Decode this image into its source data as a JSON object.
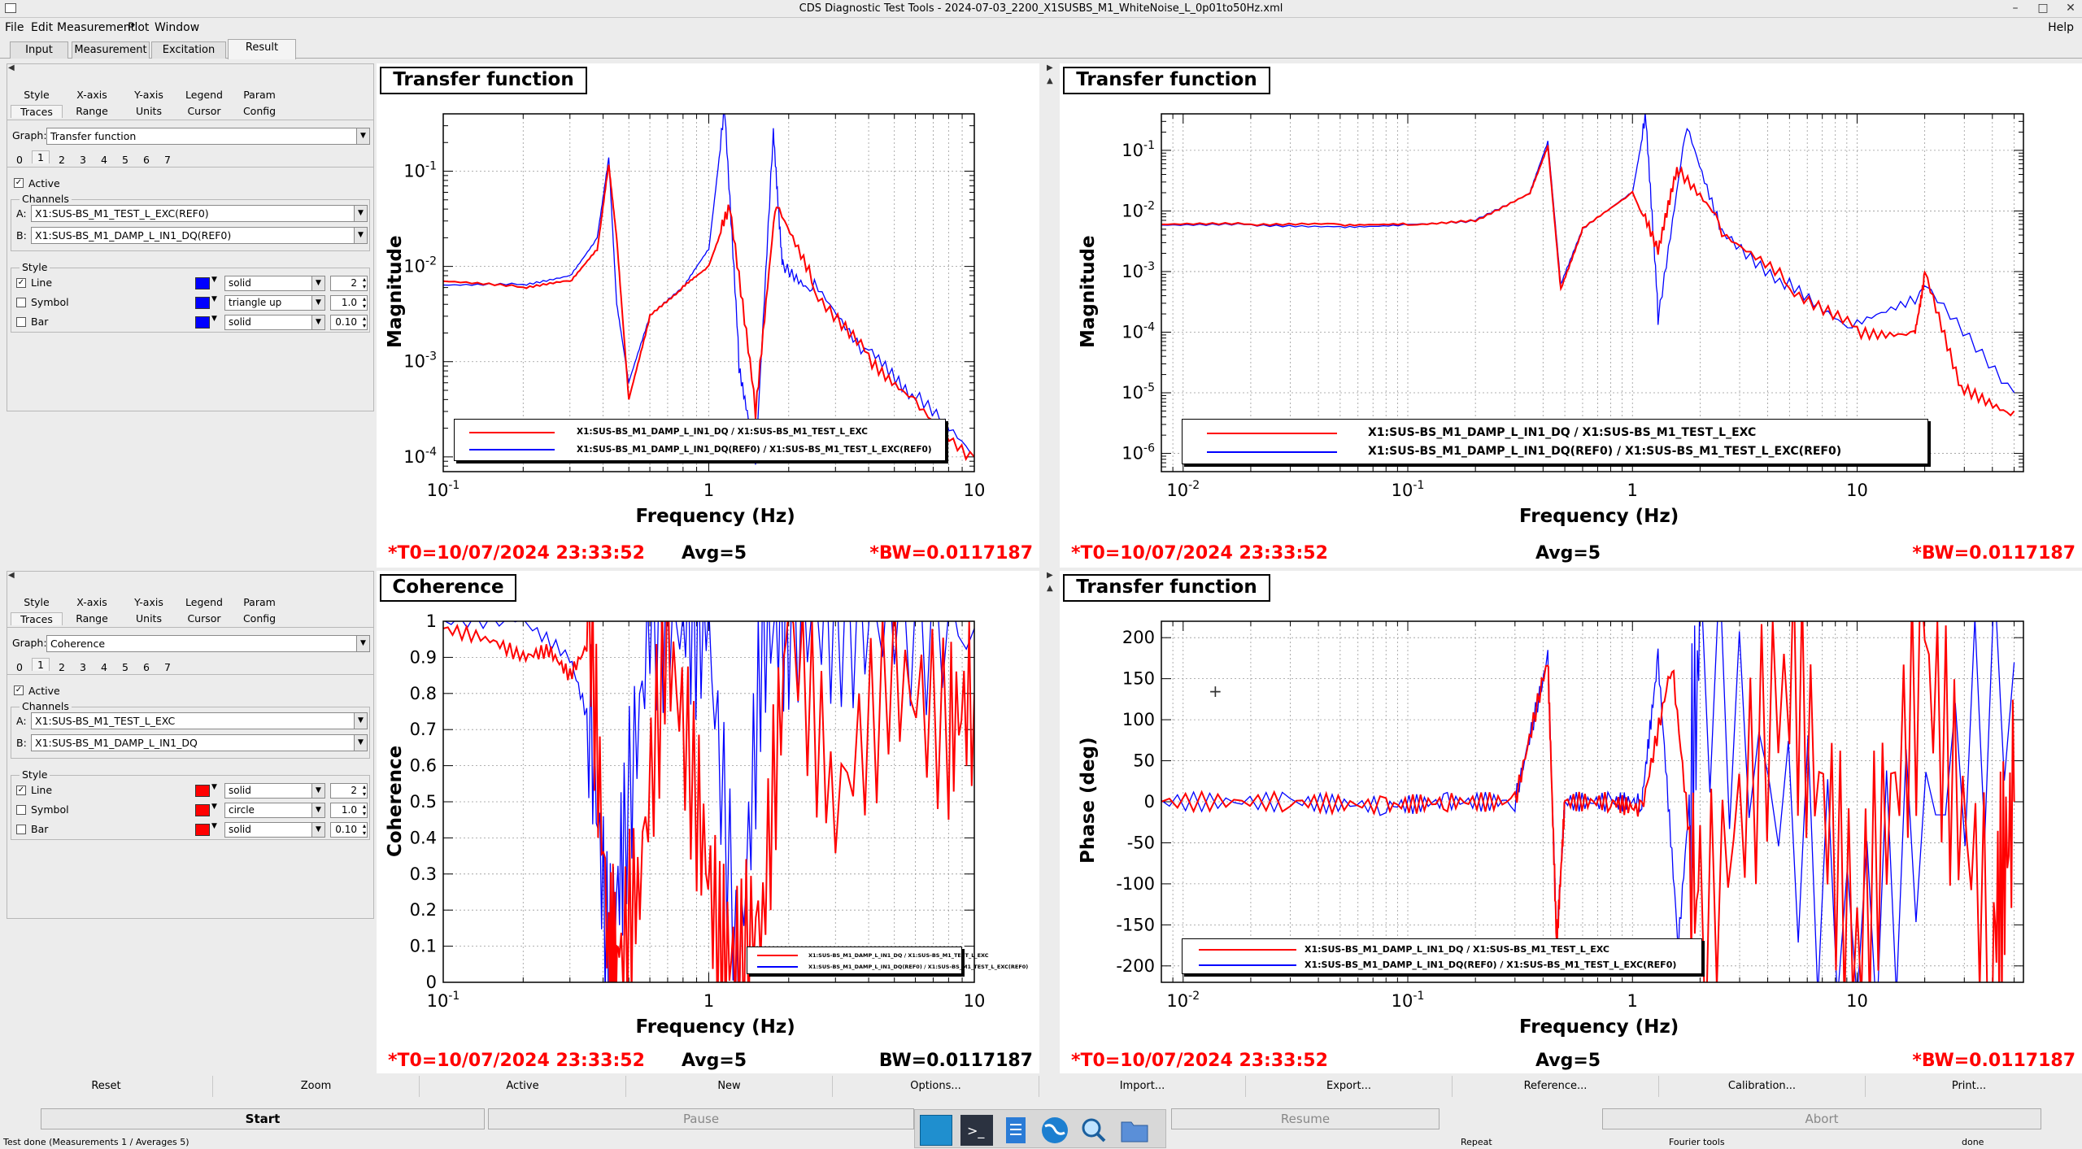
{
  "window": {
    "title": "CDS Diagnostic Test Tools - 2024-07-03_2200_X1SUSBS_M1_WhiteNoise_L_0p01to50Hz.xml",
    "controls": [
      "–",
      "□",
      "✕"
    ]
  },
  "menu": {
    "items": [
      "File",
      "Edit",
      "Measurement",
      "Plot",
      "Window"
    ],
    "help": "Help"
  },
  "tabs": [
    "Input",
    "Measurement",
    "Excitation",
    "Result"
  ],
  "panels": [
    {
      "subtabs_row1": [
        "Style",
        "X-axis",
        "Y-axis",
        "Legend",
        "Param"
      ],
      "subtabs_row2": [
        "Traces",
        "Range",
        "Units",
        "Cursor",
        "Config"
      ],
      "graph_label": "Graph:",
      "graph_value": "Transfer function",
      "trace_numbers": [
        "0",
        "1",
        "2",
        "3",
        "4",
        "5",
        "6",
        "7"
      ],
      "active_label": "Active",
      "channels_label": "Channels",
      "a_label": "A:",
      "a_value": "X1:SUS-BS_M1_TEST_L_EXC(REF0)",
      "b_label": "B:",
      "b_value": "X1:SUS-BS_M1_DAMP_L_IN1_DQ(REF0)",
      "style_label": "Style",
      "rows": [
        {
          "label": "Line",
          "checked": true,
          "color": "#0000ff",
          "style": "solid",
          "value": "2"
        },
        {
          "label": "Symbol",
          "checked": false,
          "color": "#0000ff",
          "style": "triangle up",
          "value": "1.0"
        },
        {
          "label": "Bar",
          "checked": false,
          "color": "#0000ff",
          "style": "solid",
          "value": "0.10"
        }
      ]
    },
    {
      "subtabs_row1": [
        "Style",
        "X-axis",
        "Y-axis",
        "Legend",
        "Param"
      ],
      "subtabs_row2": [
        "Traces",
        "Range",
        "Units",
        "Cursor",
        "Config"
      ],
      "graph_label": "Graph:",
      "graph_value": "Coherence",
      "trace_numbers": [
        "0",
        "1",
        "2",
        "3",
        "4",
        "5",
        "6",
        "7"
      ],
      "active_label": "Active",
      "channels_label": "Channels",
      "a_label": "A:",
      "a_value": "X1:SUS-BS_M1_TEST_L_EXC",
      "b_label": "B:",
      "b_value": "X1:SUS-BS_M1_DAMP_L_IN1_DQ",
      "style_label": "Style",
      "rows": [
        {
          "label": "Line",
          "checked": true,
          "color": "#ff0000",
          "style": "solid",
          "value": "2"
        },
        {
          "label": "Symbol",
          "checked": false,
          "color": "#ff0000",
          "style": "circle",
          "value": "1.0"
        },
        {
          "label": "Bar",
          "checked": false,
          "color": "#ff0000",
          "style": "solid",
          "value": "0.10"
        }
      ]
    }
  ],
  "plots": [
    {
      "title": "Transfer function",
      "ylabel": "Magnitude",
      "xlabel": "Frequency (Hz)",
      "t0": "*T0=10/07/2024 23:33:52",
      "avg": "Avg=5",
      "bw": "*BW=0.0117187",
      "legend": [
        "X1:SUS-BS_M1_DAMP_L_IN1_DQ / X1:SUS-BS_M1_TEST_L_EXC",
        "X1:SUS-BS_M1_DAMP_L_IN1_DQ(REF0) / X1:SUS-BS_M1_TEST_L_EXC(REF0)"
      ]
    },
    {
      "title": "Transfer function",
      "ylabel": "Magnitude",
      "xlabel": "Frequency (Hz)",
      "t0": "*T0=10/07/2024 23:33:52",
      "avg": "Avg=5",
      "bw": "*BW=0.0117187",
      "legend": [
        "X1:SUS-BS_M1_DAMP_L_IN1_DQ / X1:SUS-BS_M1_TEST_L_EXC",
        "X1:SUS-BS_M1_DAMP_L_IN1_DQ(REF0) / X1:SUS-BS_M1_TEST_L_EXC(REF0)"
      ]
    },
    {
      "title": "Coherence",
      "ylabel": "Coherence",
      "xlabel": "Frequency (Hz)",
      "t0": "*T0=10/07/2024 23:33:52",
      "avg": "Avg=5",
      "bw": "BW=0.0117187",
      "legend": [
        "X1:SUS-BS_M1_DAMP_L_IN1_DQ / X1:SUS-BS_M1_TEST_L_EXC",
        "X1:SUS-BS_M1_DAMP_L_IN1_DQ(REF0) / X1:SUS-BS_M1_TEST_L_EXC(REF0)"
      ]
    },
    {
      "title": "Transfer function",
      "ylabel": "Phase (deg)",
      "xlabel": "Frequency (Hz)",
      "t0": "*T0=10/07/2024 23:33:52",
      "avg": "Avg=5",
      "bw": "*BW=0.0117187",
      "legend": [
        "X1:SUS-BS_M1_DAMP_L_IN1_DQ / X1:SUS-BS_M1_TEST_L_EXC",
        "X1:SUS-BS_M1_DAMP_L_IN1_DQ(REF0) / X1:SUS-BS_M1_TEST_L_EXC(REF0)"
      ]
    }
  ],
  "chart_data": [
    {
      "type": "line",
      "title": "Transfer function",
      "xlabel": "Frequency (Hz)",
      "ylabel": "Magnitude",
      "xscale": "log",
      "yscale": "log",
      "xlim": [
        0.1,
        10
      ],
      "ylim": [
        7e-05,
        0.4
      ],
      "xticks": [
        "10^-1",
        "1",
        "10"
      ],
      "yticks": [
        "10^-4",
        "10^-3",
        "10^-2",
        "10^-1"
      ],
      "grid": true,
      "legend_position": "bottom",
      "series": [
        {
          "name": "X1:SUS-BS_M1_DAMP_L_IN1_DQ / X1:SUS-BS_M1_TEST_L_EXC",
          "color": "#ff0000",
          "x": [
            0.1,
            0.2,
            0.3,
            0.38,
            0.42,
            0.45,
            0.5,
            0.6,
            0.8,
            1.0,
            1.2,
            1.5,
            1.8,
            2.5,
            4,
            6,
            10
          ],
          "y": [
            0.007,
            0.006,
            0.007,
            0.015,
            0.12,
            0.02,
            0.0004,
            0.003,
            0.006,
            0.01,
            0.04,
            0.0003,
            0.05,
            0.006,
            0.0012,
            0.0004,
            0.0001
          ]
        },
        {
          "name": "X1:SUS-BS_M1_DAMP_L_IN1_DQ(REF0) / X1:SUS-BS_M1_TEST_L_EXC(REF0)",
          "color": "#0000ff",
          "x": [
            0.1,
            0.2,
            0.3,
            0.38,
            0.42,
            0.45,
            0.5,
            0.6,
            0.8,
            1.0,
            1.15,
            1.3,
            1.5,
            1.75,
            1.9,
            2.5,
            4,
            6,
            10
          ],
          "y": [
            0.0065,
            0.0065,
            0.008,
            0.02,
            0.14,
            0.004,
            0.0006,
            0.003,
            0.006,
            0.015,
            0.45,
            0.001,
            0.0001,
            0.28,
            0.01,
            0.006,
            0.0012,
            0.0004,
            0.0001
          ]
        }
      ]
    },
    {
      "type": "line",
      "title": "Transfer function",
      "xlabel": "Frequency (Hz)",
      "ylabel": "Magnitude",
      "xscale": "log",
      "yscale": "log",
      "xlim": [
        0.008,
        55
      ],
      "ylim": [
        5e-07,
        0.4
      ],
      "xticks": [
        "10^-2",
        "10^-1",
        "1",
        "10"
      ],
      "yticks": [
        "10^-6",
        "10^-5",
        "10^-4",
        "10^-3",
        "10^-2",
        "10^-1"
      ],
      "grid": true,
      "legend_position": "bottom",
      "series": [
        {
          "name": "X1:SUS-BS_M1_DAMP_L_IN1_DQ / X1:SUS-BS_M1_TEST_L_EXC",
          "color": "#ff0000",
          "x": [
            0.008,
            0.02,
            0.05,
            0.1,
            0.2,
            0.35,
            0.42,
            0.48,
            0.6,
            1.0,
            1.3,
            1.6,
            2.5,
            5,
            10,
            18,
            20,
            30,
            50
          ],
          "y": [
            0.006,
            0.006,
            0.006,
            0.006,
            0.007,
            0.02,
            0.12,
            0.0005,
            0.005,
            0.02,
            0.002,
            0.05,
            0.005,
            0.0006,
            0.00012,
            0.0001,
            0.001,
            1e-05,
            5e-06
          ]
        },
        {
          "name": "X1:SUS-BS_M1_DAMP_L_IN1_DQ(REF0) / X1:SUS-BS_M1_TEST_L_EXC(REF0)",
          "color": "#0000ff",
          "x": [
            0.008,
            0.02,
            0.05,
            0.1,
            0.2,
            0.35,
            0.42,
            0.48,
            0.6,
            1.0,
            1.15,
            1.3,
            1.75,
            2.5,
            5,
            10,
            20,
            50
          ],
          "y": [
            0.006,
            0.006,
            0.0055,
            0.006,
            0.007,
            0.02,
            0.14,
            0.0006,
            0.005,
            0.02,
            0.35,
            0.0002,
            0.3,
            0.005,
            0.0006,
            0.00012,
            0.0005,
            1e-05
          ]
        }
      ]
    },
    {
      "type": "line",
      "title": "Coherence",
      "xlabel": "Frequency (Hz)",
      "ylabel": "Coherence",
      "xscale": "log",
      "yscale": "linear",
      "xlim": [
        0.1,
        10
      ],
      "ylim": [
        0,
        1
      ],
      "xticks": [
        "10^-1",
        "1",
        "10"
      ],
      "yticks": [
        "0",
        "0.1",
        "0.2",
        "0.3",
        "0.4",
        "0.5",
        "0.6",
        "0.7",
        "0.8",
        "0.9",
        "1"
      ],
      "grid": true,
      "legend_position": "bottom-right",
      "series": [
        {
          "name": "X1:SUS-BS_M1_DAMP_L_IN1_DQ / X1:SUS-BS_M1_TEST_L_EXC",
          "color": "#ff0000",
          "x": [
            0.1,
            0.15,
            0.2,
            0.25,
            0.3,
            0.36,
            0.42,
            0.46,
            0.55,
            0.7,
            0.9,
            1.1,
            1.3,
            1.6,
            2.0,
            3.0,
            5.0,
            8.0,
            10
          ],
          "y": [
            0.98,
            0.95,
            0.9,
            0.92,
            0.85,
            0.95,
            0.1,
            0.05,
            0.3,
            0.95,
            0.5,
            0.1,
            0.05,
            0.2,
            1.0,
            0.5,
            0.85,
            0.7,
            0.8
          ]
        },
        {
          "name": "X1:SUS-BS_M1_DAMP_L_IN1_DQ(REF0) / X1:SUS-BS_M1_TEST_L_EXC(REF0)",
          "color": "#0000ff",
          "x": [
            0.1,
            0.2,
            0.3,
            0.36,
            0.42,
            0.48,
            0.6,
            0.8,
            1.0,
            1.3,
            1.6,
            2.0,
            3.0,
            5.0,
            10
          ],
          "y": [
            1.0,
            1.0,
            0.9,
            0.7,
            0.05,
            0.4,
            0.98,
            1.0,
            0.95,
            0.02,
            0.95,
            1.0,
            1.0,
            0.99,
            0.98
          ]
        }
      ]
    },
    {
      "type": "line",
      "title": "Transfer function",
      "xlabel": "Frequency (Hz)",
      "ylabel": "Phase (deg)",
      "xscale": "log",
      "yscale": "linear",
      "xlim": [
        0.008,
        55
      ],
      "ylim": [
        -220,
        220
      ],
      "xticks": [
        "10^-2",
        "10^-1",
        "1",
        "10"
      ],
      "yticks": [
        "-200",
        "-150",
        "-100",
        "-50",
        "0",
        "50",
        "100",
        "150",
        "200"
      ],
      "grid": true,
      "legend_position": "bottom-left",
      "series": [
        {
          "name": "X1:SUS-BS_M1_DAMP_L_IN1_DQ / X1:SUS-BS_M1_TEST_L_EXC",
          "color": "#ff0000",
          "x": [
            0.008,
            0.03,
            0.08,
            0.15,
            0.3,
            0.42,
            0.46,
            0.5,
            0.8,
            1.1,
            1.5,
            2.0,
            5.0,
            10,
            20,
            40,
            50
          ],
          "y": [
            0,
            0,
            -5,
            0,
            0,
            175,
            -175,
            0,
            0,
            -10,
            170,
            -170,
            175,
            -175,
            175,
            -175,
            0
          ]
        },
        {
          "name": "X1:SUS-BS_M1_DAMP_L_IN1_DQ(REF0) / X1:SUS-BS_M1_TEST_L_EXC(REF0)",
          "color": "#0000ff",
          "x": [
            0.008,
            0.03,
            0.08,
            0.15,
            0.3,
            0.42,
            0.46,
            0.5,
            0.8,
            1.1,
            1.3,
            1.6,
            2.0,
            10,
            50
          ],
          "y": [
            0,
            0,
            -5,
            0,
            0,
            175,
            -170,
            0,
            0,
            0,
            175,
            -175,
            175,
            -175,
            170
          ]
        }
      ]
    }
  ],
  "bottom_buttons": [
    "Reset",
    "Zoom",
    "Active",
    "New",
    "Options...",
    "Import...",
    "Export...",
    "Reference...",
    "Calibration...",
    "Print..."
  ],
  "run_buttons": [
    "Start",
    "Pause",
    "Resume",
    "Abort"
  ],
  "status": {
    "message": "Test done (Measurements 1 / Averages 5)",
    "repeat": "Repeat",
    "tools": "Fourier tools",
    "state": "done"
  },
  "dock_icons": [
    "desktop-icon",
    "terminal-icon",
    "text-editor-icon",
    "globe-icon",
    "magnifier-icon",
    "folder-icon"
  ]
}
